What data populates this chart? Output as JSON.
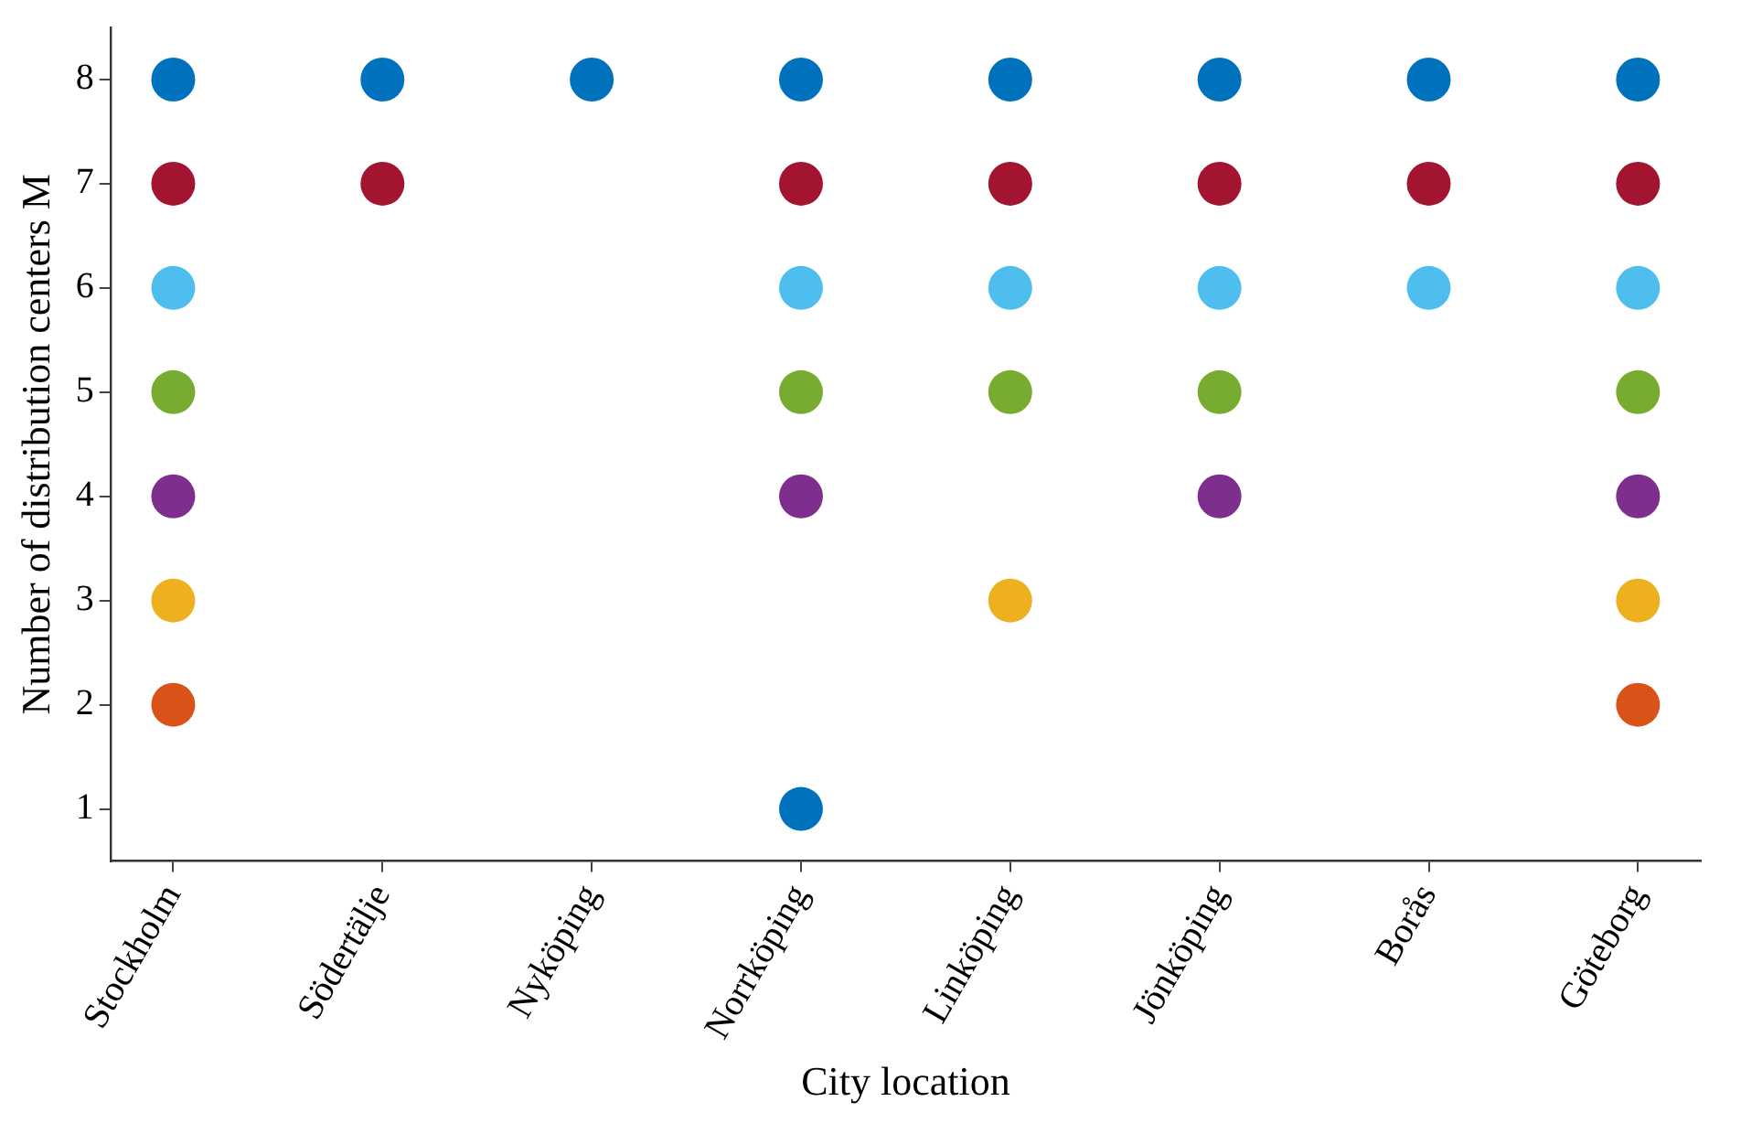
{
  "chart_data": {
    "type": "scatter",
    "xlabel": "City location",
    "ylabel": "Number of distribution centers M",
    "marker": "circle",
    "ylim": [
      0.5,
      8.5
    ],
    "yticks": [
      1,
      2,
      3,
      4,
      5,
      6,
      7,
      8
    ],
    "categories": [
      "Stockholm",
      "Södertälje",
      "Nyköping",
      "Norrköping",
      "Linköping",
      "Jönköping",
      "Borås",
      "Göteborg"
    ],
    "series": [
      {
        "color": "#0072bd",
        "x": [
          "Stockholm",
          "Södertälje",
          "Nyköping",
          "Norrköping",
          "Linköping",
          "Jönköping",
          "Borås",
          "Göteborg",
          "Norrköping"
        ],
        "values": [
          8,
          8,
          8,
          8,
          8,
          8,
          8,
          8,
          1
        ]
      },
      {
        "color": "#a2142f",
        "x": [
          "Stockholm",
          "Södertälje",
          "Norrköping",
          "Linköping",
          "Jönköping",
          "Borås",
          "Göteborg"
        ],
        "values": [
          7,
          7,
          7,
          7,
          7,
          7,
          7
        ]
      },
      {
        "color": "#4dbeee",
        "x": [
          "Stockholm",
          "Norrköping",
          "Linköping",
          "Jönköping",
          "Borås",
          "Göteborg"
        ],
        "values": [
          6,
          6,
          6,
          6,
          6,
          6
        ]
      },
      {
        "color": "#77ac30",
        "x": [
          "Stockholm",
          "Norrköping",
          "Linköping",
          "Jönköping",
          "Göteborg"
        ],
        "values": [
          5,
          5,
          5,
          5,
          5
        ]
      },
      {
        "color": "#7e2f8e",
        "x": [
          "Stockholm",
          "Norrköping",
          "Jönköping",
          "Göteborg"
        ],
        "values": [
          4,
          4,
          4,
          4
        ]
      },
      {
        "color": "#edb120",
        "x": [
          "Stockholm",
          "Linköping",
          "Göteborg"
        ],
        "values": [
          3,
          3,
          3
        ]
      },
      {
        "color": "#d95319",
        "x": [
          "Stockholm",
          "Göteborg"
        ],
        "values": [
          2,
          2
        ]
      }
    ]
  }
}
